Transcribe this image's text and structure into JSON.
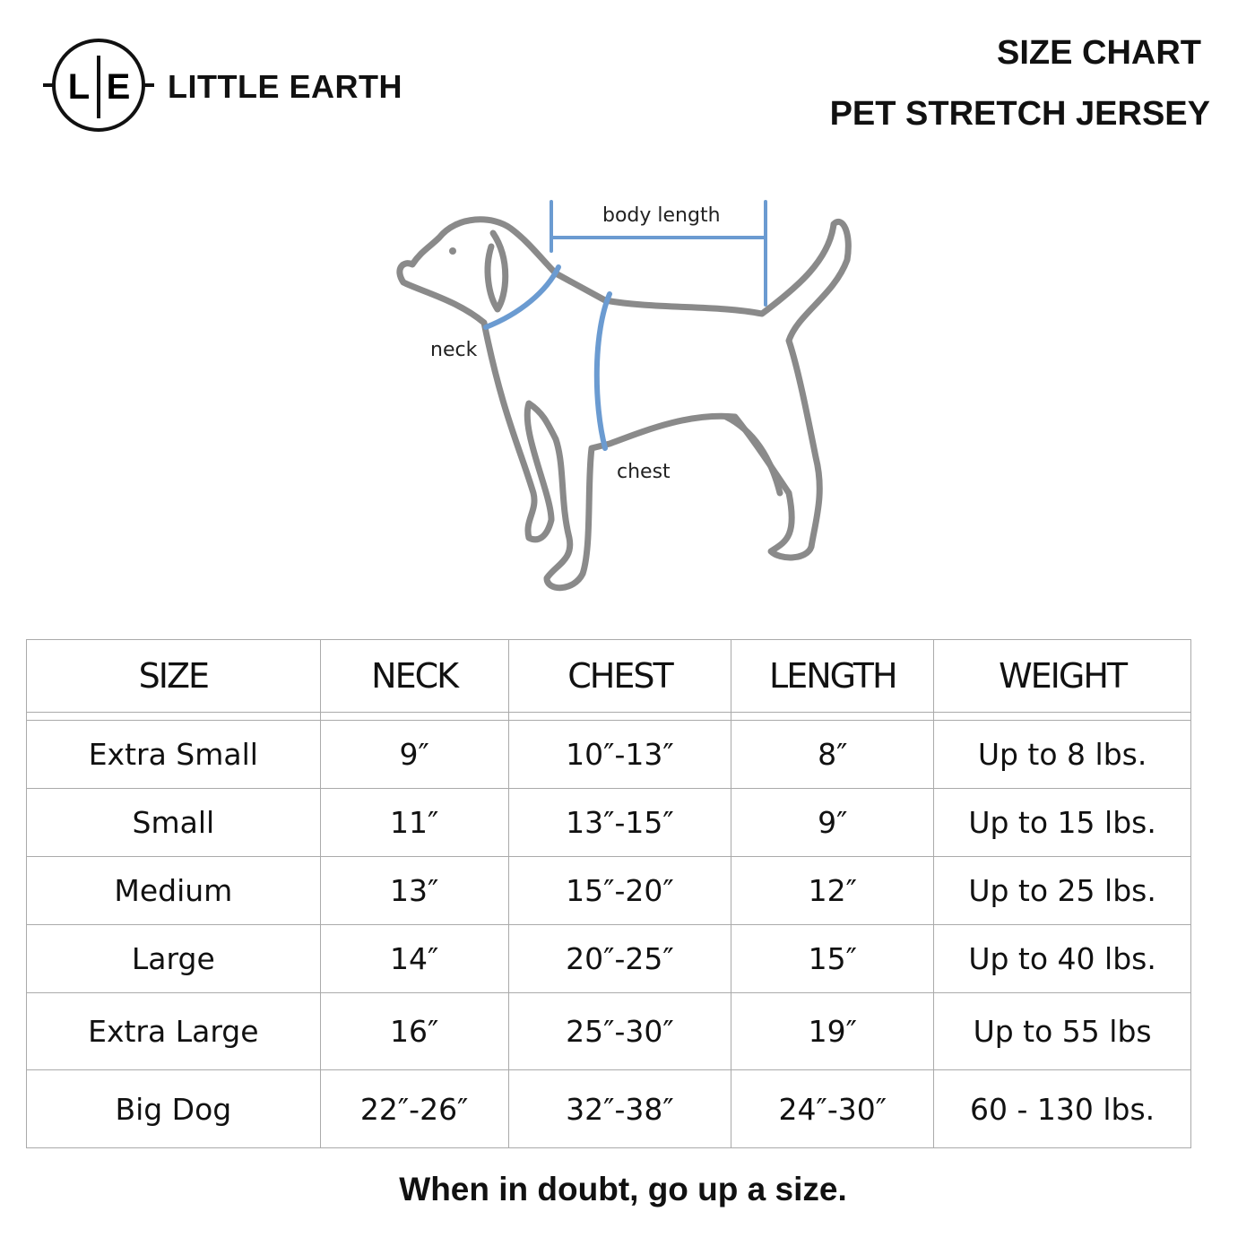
{
  "brand": {
    "logo_mark": "L|E",
    "name": "LITTLE EARTH"
  },
  "header": {
    "title": "SIZE CHART",
    "subtitle": "PET STRETCH JERSEY"
  },
  "diagram": {
    "labels": {
      "body_length": "body length",
      "neck": "neck",
      "chest": "chest"
    },
    "measure_color": "#6b9bd1",
    "outline_color": "#8a8a8a"
  },
  "table": {
    "headers": [
      "SIZE",
      "NECK",
      "CHEST",
      "LENGTH",
      "WEIGHT"
    ],
    "rows": [
      [
        "Extra Small",
        "9″",
        "10″-13″",
        "8″",
        "Up to 8 lbs."
      ],
      [
        "Small",
        "11″",
        "13″-15″",
        "9″",
        "Up to 15 lbs."
      ],
      [
        "Medium",
        "13″",
        "15″-20″",
        "12″",
        "Up to 25 lbs."
      ],
      [
        "Large",
        "14″",
        "20″-25″",
        "15″",
        "Up to 40 lbs."
      ],
      [
        "Extra Large",
        "16″",
        "25″-30″",
        "19″",
        "Up to 55 lbs"
      ],
      [
        "Big Dog",
        "22″-26″",
        "32″-38″",
        "24″-30″",
        "60 - 130 lbs."
      ]
    ]
  },
  "footer": "When in doubt, go up a size."
}
